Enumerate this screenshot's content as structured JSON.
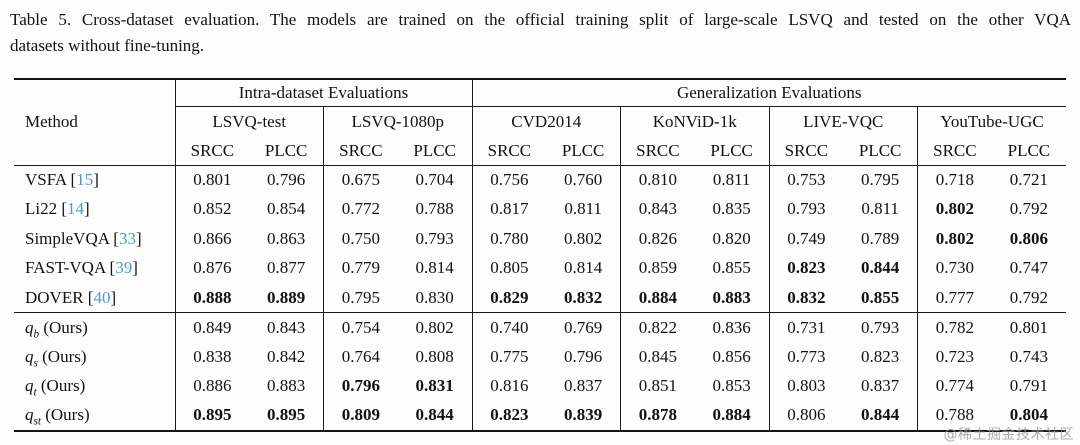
{
  "caption": {
    "line1": "Table 5. Cross-dataset evaluation. The models are trained on the official training split of large-scale LSVQ and tested on the other VQA",
    "line2": "datasets without fine-tuning."
  },
  "table": {
    "method_header": "Method",
    "groups": [
      {
        "label": "Intra-dataset Evaluations",
        "datasets": [
          "LSVQ-test",
          "LSVQ-1080p"
        ]
      },
      {
        "label": "Generalization Evaluations",
        "datasets": [
          "CVD2014",
          "KoNViD-1k",
          "LIVE-VQC",
          "YouTube-UGC"
        ]
      }
    ],
    "metric_labels": [
      "SRCC",
      "PLCC"
    ],
    "rows": [
      {
        "method": {
          "name": "VSFA",
          "cite": "15"
        },
        "values": [
          "0.801",
          "0.796",
          "0.675",
          "0.704",
          "0.756",
          "0.760",
          "0.810",
          "0.811",
          "0.753",
          "0.795",
          "0.718",
          "0.721"
        ],
        "bold": [
          0,
          0,
          0,
          0,
          0,
          0,
          0,
          0,
          0,
          0,
          0,
          0
        ]
      },
      {
        "method": {
          "name": "Li22",
          "cite": "14"
        },
        "values": [
          "0.852",
          "0.854",
          "0.772",
          "0.788",
          "0.817",
          "0.811",
          "0.843",
          "0.835",
          "0.793",
          "0.811",
          "0.802",
          "0.792"
        ],
        "bold": [
          0,
          0,
          0,
          0,
          0,
          0,
          0,
          0,
          0,
          0,
          1,
          0
        ]
      },
      {
        "method": {
          "name": "SimpleVQA",
          "cite": "33"
        },
        "values": [
          "0.866",
          "0.863",
          "0.750",
          "0.793",
          "0.780",
          "0.802",
          "0.826",
          "0.820",
          "0.749",
          "0.789",
          "0.802",
          "0.806"
        ],
        "bold": [
          0,
          0,
          0,
          0,
          0,
          0,
          0,
          0,
          0,
          0,
          1,
          1
        ]
      },
      {
        "method": {
          "name": "FAST-VQA",
          "cite": "39"
        },
        "values": [
          "0.876",
          "0.877",
          "0.779",
          "0.814",
          "0.805",
          "0.814",
          "0.859",
          "0.855",
          "0.823",
          "0.844",
          "0.730",
          "0.747"
        ],
        "bold": [
          0,
          0,
          0,
          0,
          0,
          0,
          0,
          0,
          1,
          1,
          0,
          0
        ]
      },
      {
        "method": {
          "name": "DOVER",
          "cite": "40"
        },
        "values": [
          "0.888",
          "0.889",
          "0.795",
          "0.830",
          "0.829",
          "0.832",
          "0.884",
          "0.883",
          "0.832",
          "0.855",
          "0.777",
          "0.792"
        ],
        "bold": [
          1,
          1,
          0,
          0,
          1,
          1,
          1,
          1,
          1,
          1,
          0,
          0
        ]
      },
      {
        "method": {
          "math": "q",
          "sub": "b",
          "note": "(Ours)"
        },
        "section_start": true,
        "values": [
          "0.849",
          "0.843",
          "0.754",
          "0.802",
          "0.740",
          "0.769",
          "0.822",
          "0.836",
          "0.731",
          "0.793",
          "0.782",
          "0.801"
        ],
        "bold": [
          0,
          0,
          0,
          0,
          0,
          0,
          0,
          0,
          0,
          0,
          0,
          0
        ]
      },
      {
        "method": {
          "math": "q",
          "sub": "s",
          "note": "(Ours)"
        },
        "values": [
          "0.838",
          "0.842",
          "0.764",
          "0.808",
          "0.775",
          "0.796",
          "0.845",
          "0.856",
          "0.773",
          "0.823",
          "0.723",
          "0.743"
        ],
        "bold": [
          0,
          0,
          0,
          0,
          0,
          0,
          0,
          0,
          0,
          0,
          0,
          0
        ]
      },
      {
        "method": {
          "math": "q",
          "sub": "t",
          "note": "(Ours)"
        },
        "values": [
          "0.886",
          "0.883",
          "0.796",
          "0.831",
          "0.816",
          "0.837",
          "0.851",
          "0.853",
          "0.803",
          "0.837",
          "0.774",
          "0.791"
        ],
        "bold": [
          0,
          0,
          1,
          1,
          0,
          0,
          0,
          0,
          0,
          0,
          0,
          0
        ]
      },
      {
        "method": {
          "math": "q",
          "sub": "st",
          "note": "(Ours)"
        },
        "values": [
          "0.895",
          "0.895",
          "0.809",
          "0.844",
          "0.823",
          "0.839",
          "0.878",
          "0.884",
          "0.806",
          "0.844",
          "0.788",
          "0.804"
        ],
        "bold": [
          1,
          1,
          1,
          1,
          1,
          1,
          1,
          1,
          0,
          1,
          0,
          1
        ]
      }
    ]
  },
  "watermark": "@稀土掘金技术社区",
  "colors": {
    "citation_blue": "#4f9ad3",
    "text": "#121212",
    "rule": "#1a1a1a",
    "background": "#fdfdfd",
    "watermark_gray": "#969696"
  }
}
